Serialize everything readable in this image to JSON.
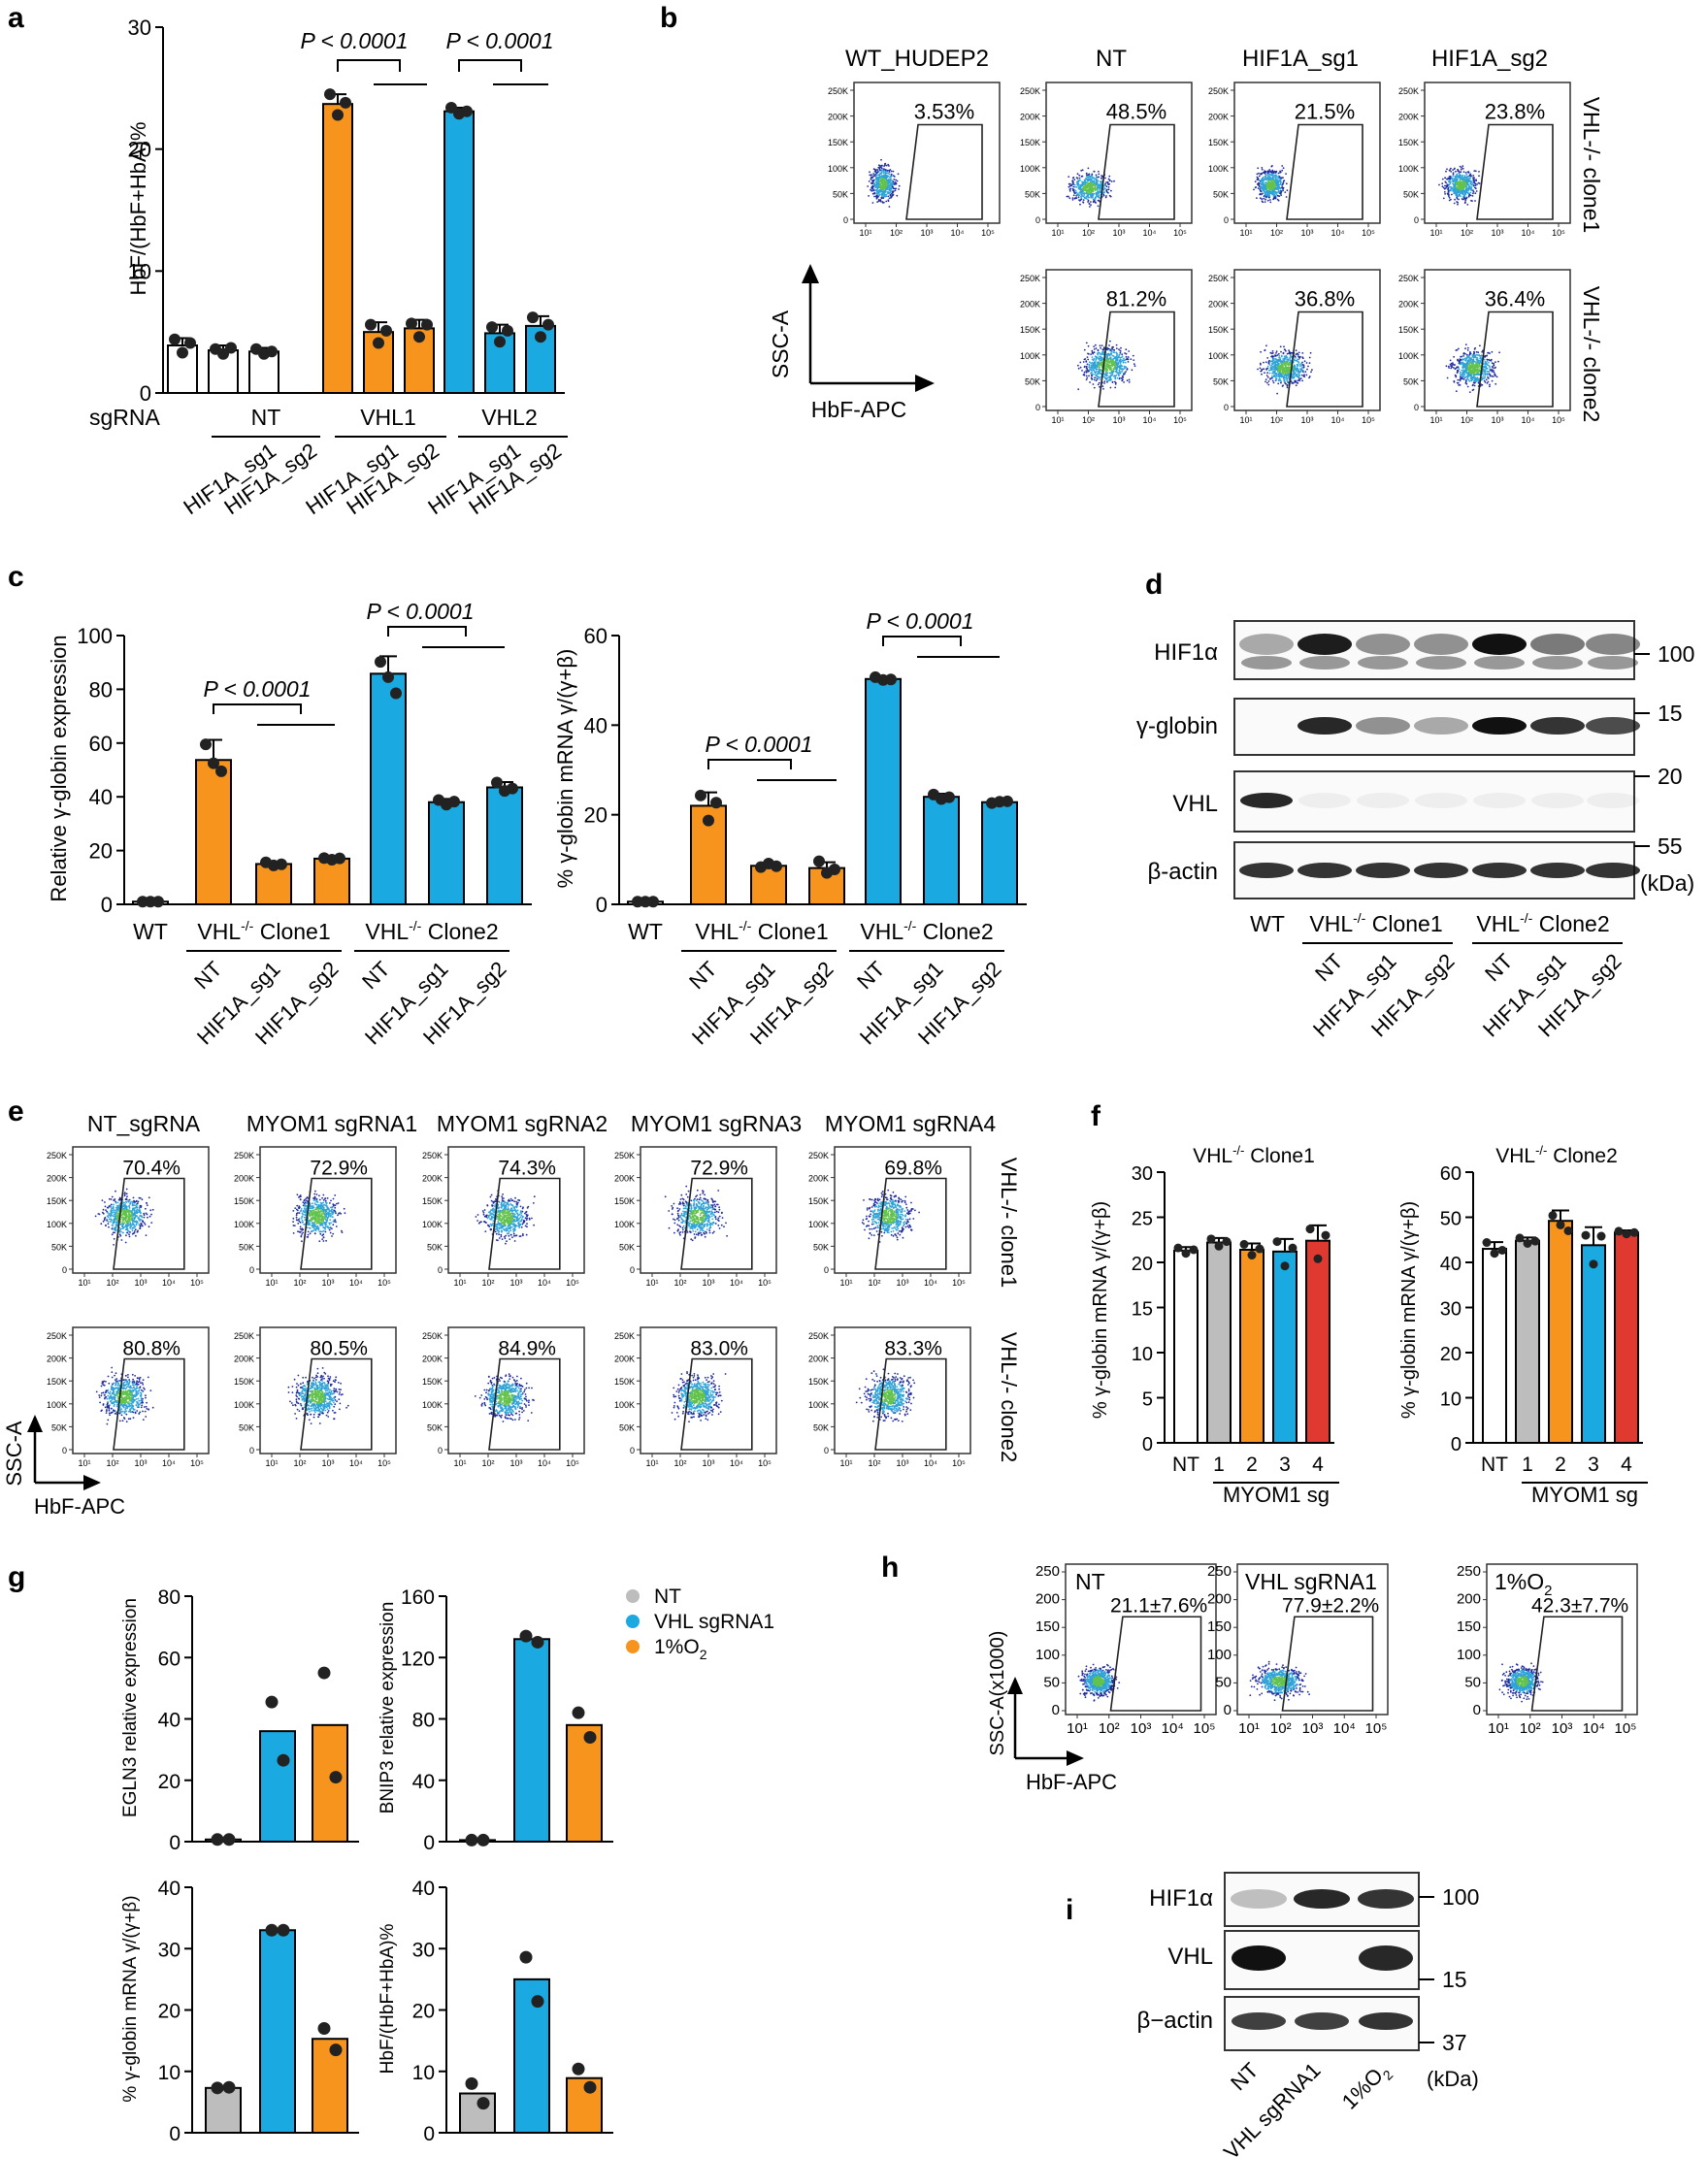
{
  "colors": {
    "nt": "#ffffff",
    "orange": "#f7941d",
    "blue": "#1ba9e1",
    "gray": "#bdbdbd",
    "red": "#e03a30",
    "dot": "#222222",
    "flow_low": "#1f2a9e",
    "flow_mid": "#2fa3d8",
    "flow_high": "#63c24c"
  },
  "panel_letters": [
    "a",
    "b",
    "c",
    "d",
    "e",
    "f",
    "g",
    "h",
    "i"
  ],
  "panel_a": {
    "ylabel": "HbF/(HbF+HbA)%",
    "yticks": [
      "0",
      "10",
      "20",
      "30"
    ],
    "sgrna_label": "sgRNA",
    "groups": [
      "NT",
      "VHL1",
      "VHL2"
    ],
    "sublabels": [
      "HIF1A_sg1",
      "HIF1A_sg2",
      "HIF1A_sg1",
      "HIF1A_sg2",
      "HIF1A_sg1",
      "HIF1A_sg2"
    ],
    "pvalues": [
      "P < 0.0001",
      "P < 0.0001"
    ]
  },
  "panel_b": {
    "columns": [
      "WT_HUDEP2",
      "NT",
      "HIF1A_sg1",
      "HIF1A_sg2"
    ],
    "row_labels": [
      "VHL-/- clone1",
      "VHL-/- clone2"
    ],
    "row1_pct": [
      "3.53%",
      "48.5%",
      "21.5%",
      "23.8%"
    ],
    "row2_pct": [
      "81.2%",
      "36.8%",
      "36.4%"
    ],
    "yticks": [
      "250K",
      "200K",
      "150K",
      "100K",
      "50K",
      "0"
    ],
    "xticks": [
      "10¹",
      "10²",
      "10³",
      "10⁴",
      "10⁵"
    ],
    "ylabel": "SSC-A",
    "xlabel": "HbF-APC"
  },
  "panel_c": {
    "left_ylabel": "Relative γ-globin expression",
    "left_yticks": [
      "0",
      "20",
      "40",
      "60",
      "80",
      "100"
    ],
    "right_ylabel": "% γ-globin mRNA γ/(γ+β)",
    "right_yticks": [
      "0",
      "20",
      "40",
      "60"
    ],
    "wt_label": "WT",
    "clone1_label": "VHL-/- Clone1",
    "clone2_label": "VHL-/- Clone2",
    "sublabels": [
      "NT",
      "HIF1A_sg1",
      "HIF1A_sg2",
      "NT",
      "HIF1A_sg1",
      "HIF1A_sg2"
    ],
    "left_pvalues": [
      "P < 0.0001",
      "P < 0.0001"
    ],
    "right_pvalues": [
      "P < 0.0001",
      "P < 0.0001"
    ]
  },
  "panel_d": {
    "rows": [
      "HIF1α",
      "γ-globin",
      "VHL",
      "β-actin"
    ],
    "markers": [
      "100",
      "15",
      "20",
      "55"
    ],
    "unit": "(kDa)",
    "wt_label": "WT",
    "clone1_label": "VHL-/- Clone1",
    "clone2_label": "VHL-/- Clone2",
    "sublabels": [
      "NT",
      "HIF1A_sg1",
      "HIF1A_sg2",
      "NT",
      "HIF1A_sg1",
      "HIF1A_sg2"
    ]
  },
  "panel_e": {
    "columns": [
      "NT_sgRNA",
      "MYOM1 sgRNA1",
      "MYOM1 sgRNA2",
      "MYOM1 sgRNA3",
      "MYOM1 sgRNA4"
    ],
    "row_labels": [
      "VHL-/- clone1",
      "VHL-/- clone2"
    ],
    "row1_pct": [
      "70.4%",
      "72.9%",
      "74.3%",
      "72.9%",
      "69.8%"
    ],
    "row2_pct": [
      "80.8%",
      "80.5%",
      "84.9%",
      "83.0%",
      "83.3%"
    ],
    "yticks": [
      "250K",
      "200K",
      "150K",
      "100K",
      "50K",
      "0"
    ],
    "xticks": [
      "10¹",
      "10²",
      "10³",
      "10⁴",
      "10⁵"
    ],
    "ylabel": "SSC-A",
    "xlabel": "HbF-APC"
  },
  "panel_f": {
    "left_title": "VHL-/- Clone1",
    "right_title": "VHL-/- Clone2",
    "ylabel": "% γ-globin mRNA γ/(γ+β)",
    "left_yticks": [
      "0",
      "5",
      "10",
      "15",
      "20",
      "25",
      "30"
    ],
    "right_yticks": [
      "0",
      "10",
      "20",
      "30",
      "40",
      "50",
      "60"
    ],
    "xlabels": [
      "NT",
      "1",
      "2",
      "3",
      "4"
    ],
    "group_label": "MYOM1 sg"
  },
  "panel_g": {
    "legend": [
      "NT",
      "VHL sgRNA1",
      "1%O2"
    ],
    "ylabels": [
      "EGLN3 relative expression",
      "BNIP3 relative expression",
      "% γ-globin mRNA γ/(γ+β)",
      "HbF/(HbF+HbA)%"
    ],
    "yticks": [
      [
        "0",
        "20",
        "40",
        "60",
        "80"
      ],
      [
        "0",
        "40",
        "80",
        "120",
        "160"
      ],
      [
        "0",
        "10",
        "20",
        "30",
        "40"
      ],
      [
        "0",
        "10",
        "20",
        "30",
        "40"
      ]
    ]
  },
  "panel_h": {
    "conditions": [
      "NT",
      "VHL sgRNA1",
      "1%O2"
    ],
    "pct": [
      "21.1±7.6%",
      "77.9±2.2%",
      "42.3±7.7%"
    ],
    "yticks": [
      "250",
      "200",
      "150",
      "100",
      "50",
      "0"
    ],
    "xticks": [
      "10¹",
      "10²",
      "10³",
      "10⁴",
      "10⁵"
    ],
    "ylabel": "SSC-A(x1000)",
    "xlabel": "HbF-APC"
  },
  "panel_i": {
    "rows": [
      "HIF1α",
      "VHL",
      "β−actin"
    ],
    "markers": [
      "100",
      "15",
      "37"
    ],
    "unit": "(kDa)",
    "lanes": [
      "NT",
      "VHL sgRNA1",
      "1%O2"
    ]
  },
  "chart_data": [
    {
      "panel": "a",
      "type": "bar",
      "ylabel": "HbF/(HbF+HbA)%",
      "ylim": [
        0,
        30
      ],
      "categories": [
        "NT",
        "NT HIF1A_sg1",
        "NT HIF1A_sg2",
        "VHL1",
        "VHL1 HIF1A_sg1",
        "VHL1 HIF1A_sg2",
        "VHL2",
        "VHL2 HIF1A_sg1",
        "VHL2 HIF1A_sg2"
      ],
      "values": [
        3.9,
        3.5,
        3.4,
        23.7,
        5.0,
        5.3,
        23.1,
        4.9,
        5.5
      ],
      "sd": [
        0.6,
        0.4,
        0.3,
        0.8,
        0.8,
        0.7,
        0.3,
        0.7,
        0.8
      ],
      "points": [
        [
          4.4,
          3.3,
          4.1
        ],
        [
          3.6,
          3.2,
          3.7
        ],
        [
          3.6,
          3.2,
          3.4
        ],
        [
          24.5,
          22.8,
          23.8
        ],
        [
          5.6,
          4.1,
          5.1
        ],
        [
          5.7,
          4.6,
          5.6
        ],
        [
          23.4,
          22.9,
          23.1
        ],
        [
          5.4,
          4.2,
          5.1
        ],
        [
          6.2,
          4.6,
          5.6
        ]
      ]
    },
    {
      "panel": "c-left",
      "type": "bar",
      "ylabel": "Relative γ-globin expression",
      "ylim": [
        0,
        100
      ],
      "categories": [
        "WT",
        "Clone1 NT",
        "Clone1 HIF1A_sg1",
        "Clone1 HIF1A_sg2",
        "Clone2 NT",
        "Clone2 HIF1A_sg1",
        "Clone2 HIF1A_sg2"
      ],
      "values": [
        1,
        53.7,
        15.0,
        17.0,
        85.8,
        38.0,
        43.5
      ],
      "sd": [
        0.3,
        7.5,
        0.8,
        0.5,
        6.5,
        1.2,
        2.0
      ],
      "points": [
        [
          1,
          1,
          1
        ],
        [
          59.5,
          52.5,
          49.5
        ],
        [
          15.6,
          14.5,
          14.9
        ],
        [
          17.2,
          16.6,
          17.1
        ],
        [
          90.2,
          84.5,
          78.5
        ],
        [
          38.8,
          37.1,
          38.2
        ],
        [
          45.3,
          42.2,
          43.1
        ]
      ]
    },
    {
      "panel": "c-right",
      "type": "bar",
      "ylabel": "% γ-globin mRNA γ/(γ+β)",
      "ylim": [
        0,
        60
      ],
      "categories": [
        "WT",
        "Clone1 NT",
        "Clone1 HIF1A_sg1",
        "Clone1 HIF1A_sg2",
        "Clone2 NT",
        "Clone2 HIF1A_sg1",
        "Clone2 HIF1A_sg2"
      ],
      "values": [
        0.6,
        22.0,
        8.6,
        8.1,
        50.3,
        24.0,
        22.8
      ],
      "sd": [
        0.2,
        3.0,
        0.7,
        1.3,
        0.5,
        0.7,
        0.3
      ],
      "points": [
        [
          0.6,
          0.6,
          0.6
        ],
        [
          24.3,
          18.7,
          22.7
        ],
        [
          8.3,
          9.1,
          8.5
        ],
        [
          9.6,
          7.0,
          7.8
        ],
        [
          50.7,
          50.1,
          50.2
        ],
        [
          24.5,
          23.5,
          23.9
        ],
        [
          22.6,
          22.9,
          23.0
        ]
      ]
    },
    {
      "panel": "f-left",
      "type": "bar",
      "title": "VHL-/- Clone1",
      "ylabel": "% γ-globin mRNA γ/(γ+β)",
      "ylim": [
        0,
        30
      ],
      "categories": [
        "NT",
        "1",
        "2",
        "3",
        "4"
      ],
      "values": [
        21.3,
        22.2,
        21.4,
        21.2,
        22.4
      ],
      "sd": [
        0.4,
        0.5,
        0.7,
        1.4,
        1.7
      ],
      "points": [
        [
          21.6,
          21.0,
          21.4
        ],
        [
          22.6,
          21.8,
          22.3
        ],
        [
          22.0,
          20.8,
          21.5
        ],
        [
          22.3,
          19.6,
          21.6
        ],
        [
          23.7,
          20.4,
          23.0
        ]
      ]
    },
    {
      "panel": "f-right",
      "type": "bar",
      "title": "VHL-/- Clone2",
      "ylabel": "% γ-globin mRNA γ/(γ+β)",
      "ylim": [
        0,
        60
      ],
      "categories": [
        "NT",
        "1",
        "2",
        "3",
        "4"
      ],
      "values": [
        43.0,
        44.8,
        49.2,
        43.8,
        46.6
      ],
      "sd": [
        1.5,
        0.7,
        2.3,
        4.0,
        0.5
      ],
      "points": [
        [
          44.4,
          42.0,
          42.7
        ],
        [
          45.4,
          44.2,
          44.7
        ],
        [
          50.4,
          48.3,
          47.0
        ],
        [
          46.0,
          39.6,
          45.8
        ],
        [
          46.9,
          46.3,
          46.6
        ]
      ]
    },
    {
      "panel": "g",
      "type": "bar",
      "series": [
        {
          "name": "EGLN3 relative expression",
          "ylim": [
            0,
            80
          ],
          "values": [
            0.7,
            36.0,
            38.0
          ],
          "points": [
            [
              0.7,
              0.7
            ],
            [
              45.5,
              26.5
            ],
            [
              55.0,
              21.0
            ]
          ]
        },
        {
          "name": "BNIP3 relative expression",
          "ylim": [
            0,
            160
          ],
          "values": [
            1.0,
            132.0,
            76.0
          ],
          "points": [
            [
              1,
              1
            ],
            [
              134.0,
              130.0
            ],
            [
              84.0,
              68.0
            ]
          ]
        },
        {
          "name": "% γ-globin mRNA γ/(γ+β)",
          "ylim": [
            0,
            40
          ],
          "values": [
            7.3,
            33.0,
            15.3
          ],
          "points": [
            [
              7.3,
              7.4
            ],
            [
              33.0,
              33.0
            ],
            [
              17.0,
              13.5
            ]
          ]
        },
        {
          "name": "HbF/(HbF+HbA)%",
          "ylim": [
            0,
            40
          ],
          "values": [
            6.4,
            25.0,
            8.9
          ],
          "points": [
            [
              8.0,
              4.8
            ],
            [
              28.6,
              21.4
            ],
            [
              10.4,
              7.4
            ]
          ]
        }
      ],
      "categories": [
        "NT",
        "VHL sgRNA1",
        "1%O2"
      ]
    }
  ]
}
